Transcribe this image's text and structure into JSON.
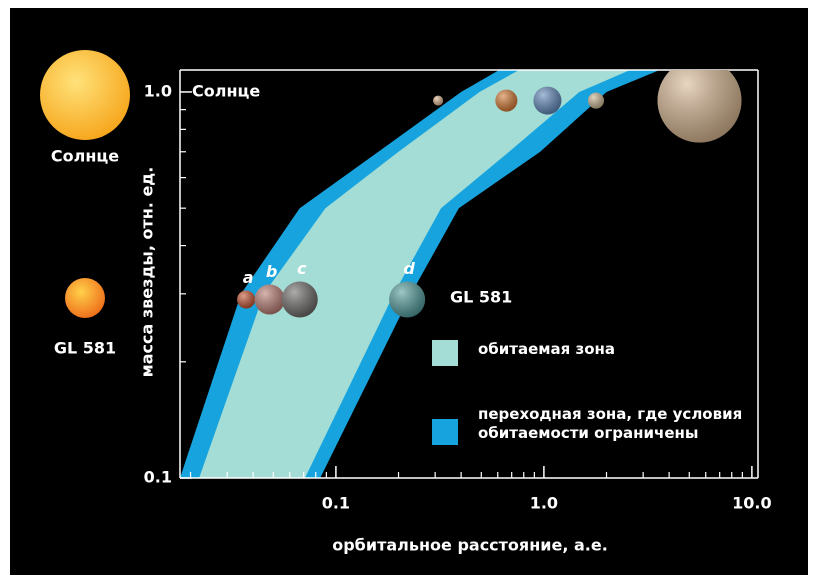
{
  "chart_data": {
    "type": "band",
    "xlabel": "орбитальное расстояние, а.е.",
    "ylabel": "масса звезды, отн. ед.",
    "log_x": true,
    "log_y": true,
    "xlim": [
      0.0178,
      10.7
    ],
    "ylim": [
      0.1,
      1.14
    ],
    "xticks": [
      {
        "value": 0.1,
        "label": "0.1"
      },
      {
        "value": 1,
        "label": "1.0"
      },
      {
        "value": 10,
        "label": "10.0"
      }
    ],
    "yticks": [
      {
        "value": 0.1,
        "label": "0.1"
      },
      {
        "value": 1,
        "label": "1.0"
      }
    ],
    "x_minor_ticks": [
      0.02,
      0.03,
      0.04,
      0.05,
      0.06,
      0.07,
      0.08,
      0.09,
      0.2,
      0.3,
      0.4,
      0.5,
      0.6,
      0.7,
      0.8,
      0.9,
      2,
      3,
      4,
      5,
      6,
      7,
      8,
      9
    ],
    "y_minor_ticks": [
      0.2,
      0.3,
      0.4,
      0.5,
      0.6,
      0.7,
      0.8,
      0.9
    ],
    "y": [
      0.1,
      0.3,
      0.5,
      0.7,
      1.0,
      1.14
    ],
    "series": [
      {
        "name": "переходная зона, где условия обитаемости ограничены",
        "color": "#17a4de",
        "left": [
          0.0178,
          0.035,
          0.067,
          0.16,
          0.4,
          0.61
        ],
        "right": [
          0.084,
          0.23,
          0.39,
          0.96,
          2.0,
          3.6
        ]
      },
      {
        "name": "обитаемая зона",
        "color": "#a3ddd6",
        "left": [
          0.022,
          0.045,
          0.089,
          0.2,
          0.49,
          0.76
        ],
        "right": [
          0.071,
          0.19,
          0.32,
          0.68,
          1.48,
          2.6
        ]
      }
    ],
    "points": {
      "x": [
        0.31,
        0.66,
        1.04,
        1.78,
        5.6,
        0.037,
        0.048,
        0.067,
        0.22
      ],
      "y": [
        0.95,
        0.95,
        0.95,
        0.95,
        0.95,
        0.29,
        0.29,
        0.29,
        0.29
      ],
      "labels": [
        null,
        null,
        null,
        null,
        null,
        "a",
        "b",
        "c",
        "d"
      ],
      "colors": [
        "#d9b08a",
        "#d2762f",
        "#5d86b8",
        "#c9b491",
        "#d8b690",
        "#c2502e",
        "#b87a70",
        "#6b6766",
        "#4f9a9a"
      ]
    },
    "annotations": [
      "Солнце",
      "GL 581"
    ],
    "stars": [
      {
        "name": "Солнце",
        "color": "#fbb829"
      },
      {
        "name": "GL 581",
        "color": "#f28a1e"
      }
    ]
  }
}
